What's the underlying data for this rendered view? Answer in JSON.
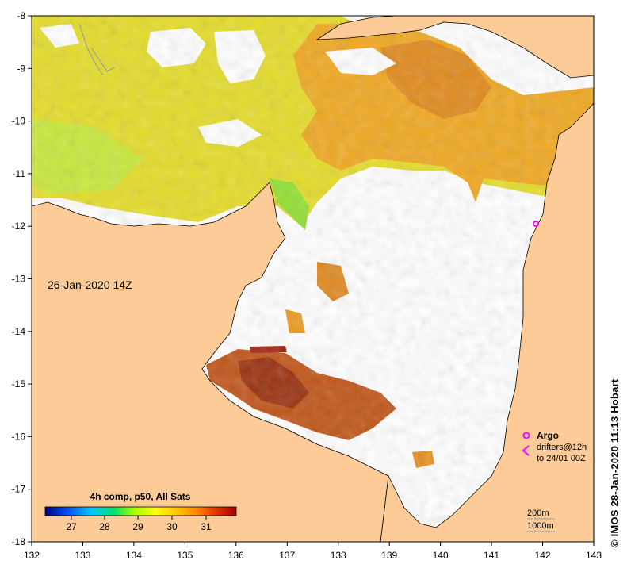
{
  "map": {
    "timestamp_label": "26-Jan-2020 14Z",
    "x_ticks": [
      "132",
      "133",
      "134",
      "135",
      "136",
      "137",
      "138",
      "139",
      "140",
      "141",
      "142",
      "143"
    ],
    "y_ticks": [
      "-8",
      "-9",
      "-10",
      "-11",
      "-12",
      "-13",
      "-14",
      "-15",
      "-16",
      "-17",
      "-18"
    ]
  },
  "colorbar": {
    "title": "4h comp, p50, All Sats",
    "ticks": [
      "27",
      "28",
      "29",
      "30",
      "31"
    ],
    "colors": [
      "#000080",
      "#0050ff",
      "#00c8ff",
      "#00e070",
      "#a0ff00",
      "#ffff00",
      "#ffc000",
      "#ff8000",
      "#e03000",
      "#a00000"
    ]
  },
  "legend": {
    "argo_label": "Argo",
    "drifters_line1": "drifters@12h",
    "drifters_line2": "to 24/01 00Z",
    "argo_color": "#ff00ff"
  },
  "bathymetry": {
    "label_200": "200m",
    "label_1000": "1000m"
  },
  "credit": "© IMOS 28-Jan-2020 11:13 Hobart",
  "colors": {
    "land": "#fccb98",
    "sst_warm": "#f0b020",
    "sst_north": "#e8e020",
    "sst_hot": "#b04010"
  }
}
